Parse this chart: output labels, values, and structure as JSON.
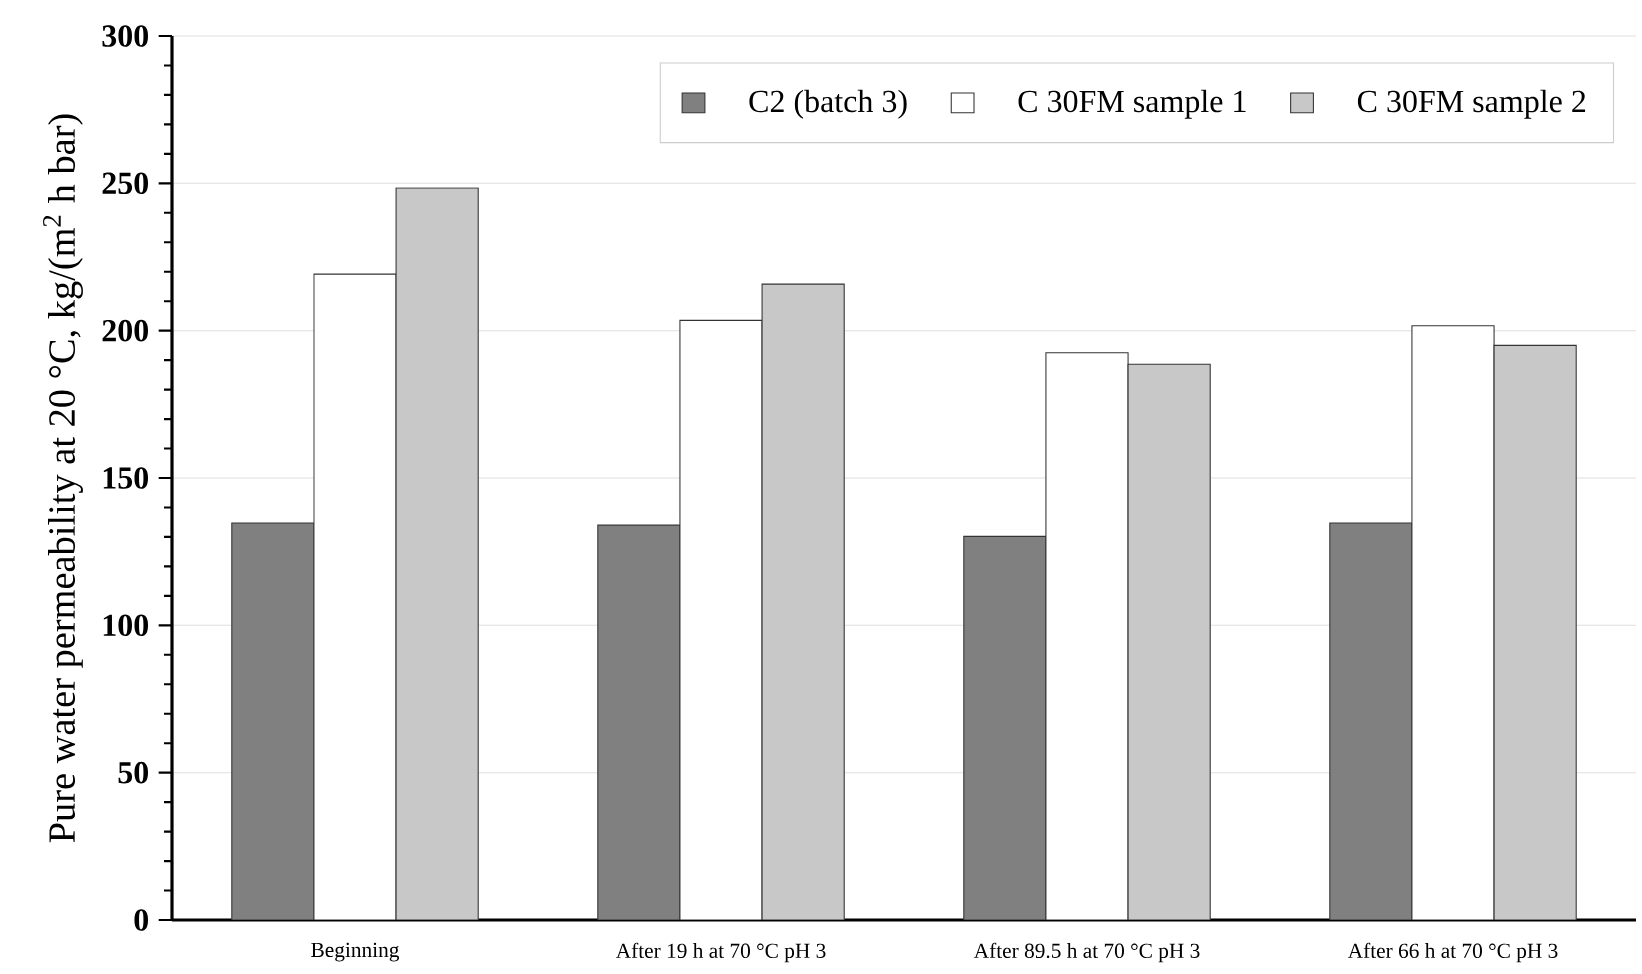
{
  "chart_data": {
    "type": "bar",
    "ylabel": "Pure water permeability at 20 °C, kg/(m$^{2}$ h bar)",
    "categories": [
      "Beginning",
      "After 19 h at 70 °C pH 3",
      "After 89.5 h at 70 °C pH 3",
      "After 66 h at 70 °C pH 3"
    ],
    "series": [
      {
        "name": "C2 (batch 3)",
        "color": "#808080",
        "values": [
          134.7,
          134.0,
          130.2,
          134.7
        ]
      },
      {
        "name": "C 30FM sample 1",
        "color": "#ffffff",
        "values": [
          219.2,
          203.5,
          192.5,
          201.7
        ]
      },
      {
        "name": "C 30FM sample 2",
        "color": "#c8c8c8",
        "values": [
          248.4,
          215.8,
          188.6,
          195.0
        ]
      }
    ],
    "ylim": [
      0,
      300
    ],
    "yticks": [
      0,
      50,
      100,
      150,
      200,
      250,
      300
    ],
    "grid": "y",
    "legend": "top right"
  }
}
